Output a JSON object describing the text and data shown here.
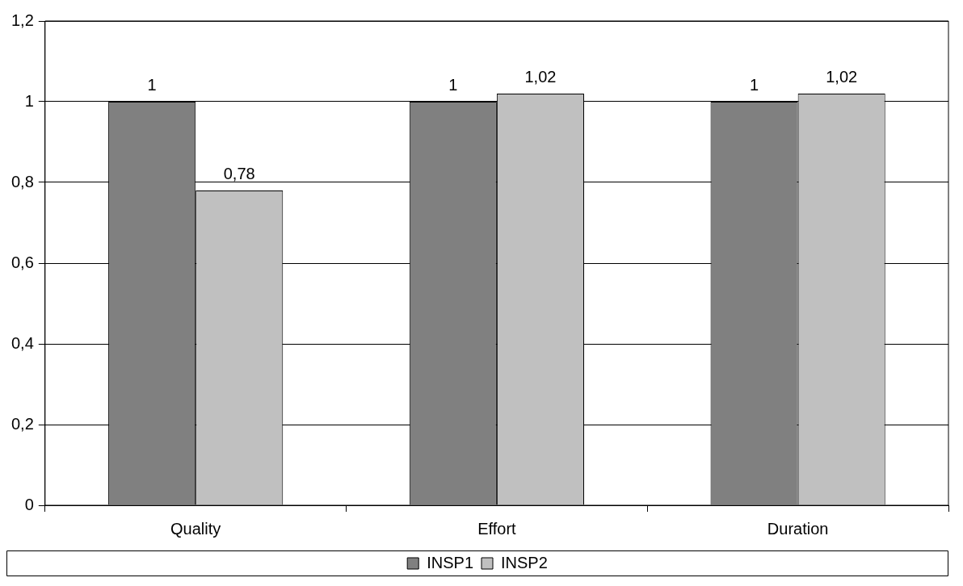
{
  "chart_data": {
    "type": "bar",
    "categories": [
      "Quality",
      "Effort",
      "Duration"
    ],
    "series": [
      {
        "name": "INSP1",
        "color": "#808080",
        "values": [
          1,
          1,
          1
        ],
        "value_labels": [
          "1",
          "1",
          "1"
        ]
      },
      {
        "name": "INSP2",
        "color": "#c0c0c0",
        "values": [
          0.78,
          1.02,
          1.02
        ],
        "value_labels": [
          "0,78",
          "1,02",
          "1,02"
        ]
      }
    ],
    "ylim": [
      0,
      1.2
    ],
    "yticks": [
      0,
      {
        "value": 0.2,
        "label": "0,2"
      },
      {
        "value": 0.4,
        "label": "0,4"
      },
      {
        "value": 0.6,
        "label": "0,6"
      },
      {
        "value": 0.8,
        "label": "0,8"
      },
      1,
      {
        "value": 1.2,
        "label": "1,2"
      }
    ],
    "grid": "y",
    "legend": "bottom"
  }
}
